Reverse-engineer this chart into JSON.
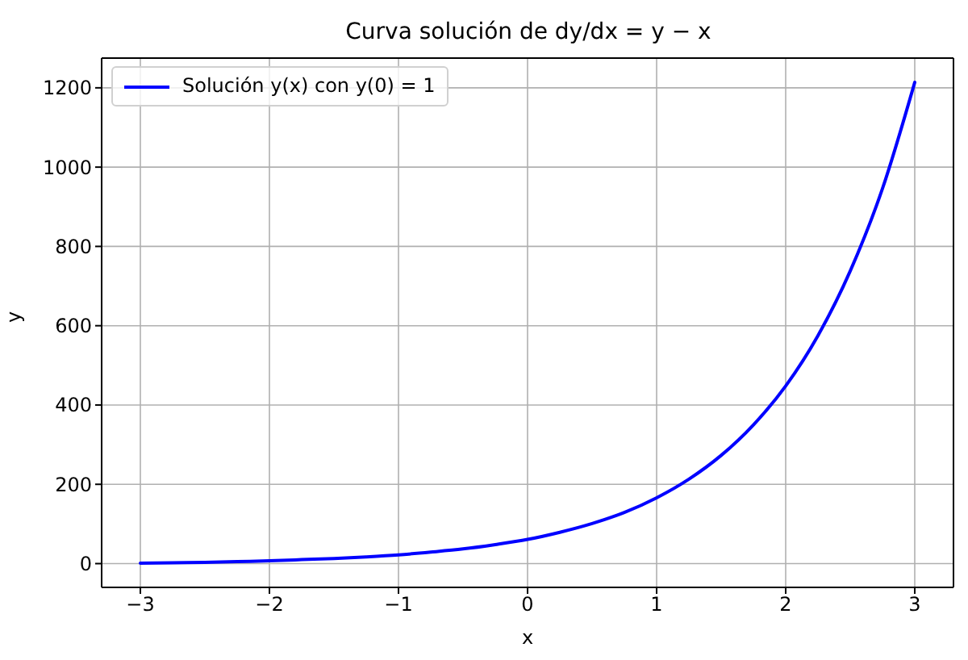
{
  "chart_data": {
    "type": "line",
    "title": "Curva solución de dy/dx = y − x",
    "xlabel": "x",
    "ylabel": "y",
    "x": [
      -3,
      -2.75,
      -2.5,
      -2.25,
      -2,
      -1.75,
      -1.5,
      -1.25,
      -1,
      -0.75,
      -0.5,
      -0.25,
      0,
      0.25,
      0.5,
      0.75,
      1,
      1.25,
      1.5,
      1.75,
      2,
      2.25,
      2.5,
      2.75,
      3
    ],
    "series": [
      {
        "name": "Solución y(x) con y(0) = 1",
        "color": "#0000ff",
        "values": [
          1,
          2,
          3,
          5,
          7,
          10,
          13,
          17,
          22,
          29,
          37,
          48,
          61,
          79,
          101,
          129,
          166,
          213,
          273,
          350,
          448,
          575,
          738,
          946,
          1214
        ]
      }
    ],
    "xlim": [
      -3.3,
      3.3
    ],
    "xticks": [
      {
        "value": -3,
        "label": "−3"
      },
      {
        "value": -2,
        "label": "−2"
      },
      {
        "value": -1,
        "label": "−1"
      },
      0,
      1,
      2,
      3
    ],
    "ylim": [
      -60,
      1275
    ],
    "yticks": [
      0,
      200,
      400,
      600,
      800,
      1000,
      1200
    ],
    "grid": true,
    "legend": "top left"
  }
}
